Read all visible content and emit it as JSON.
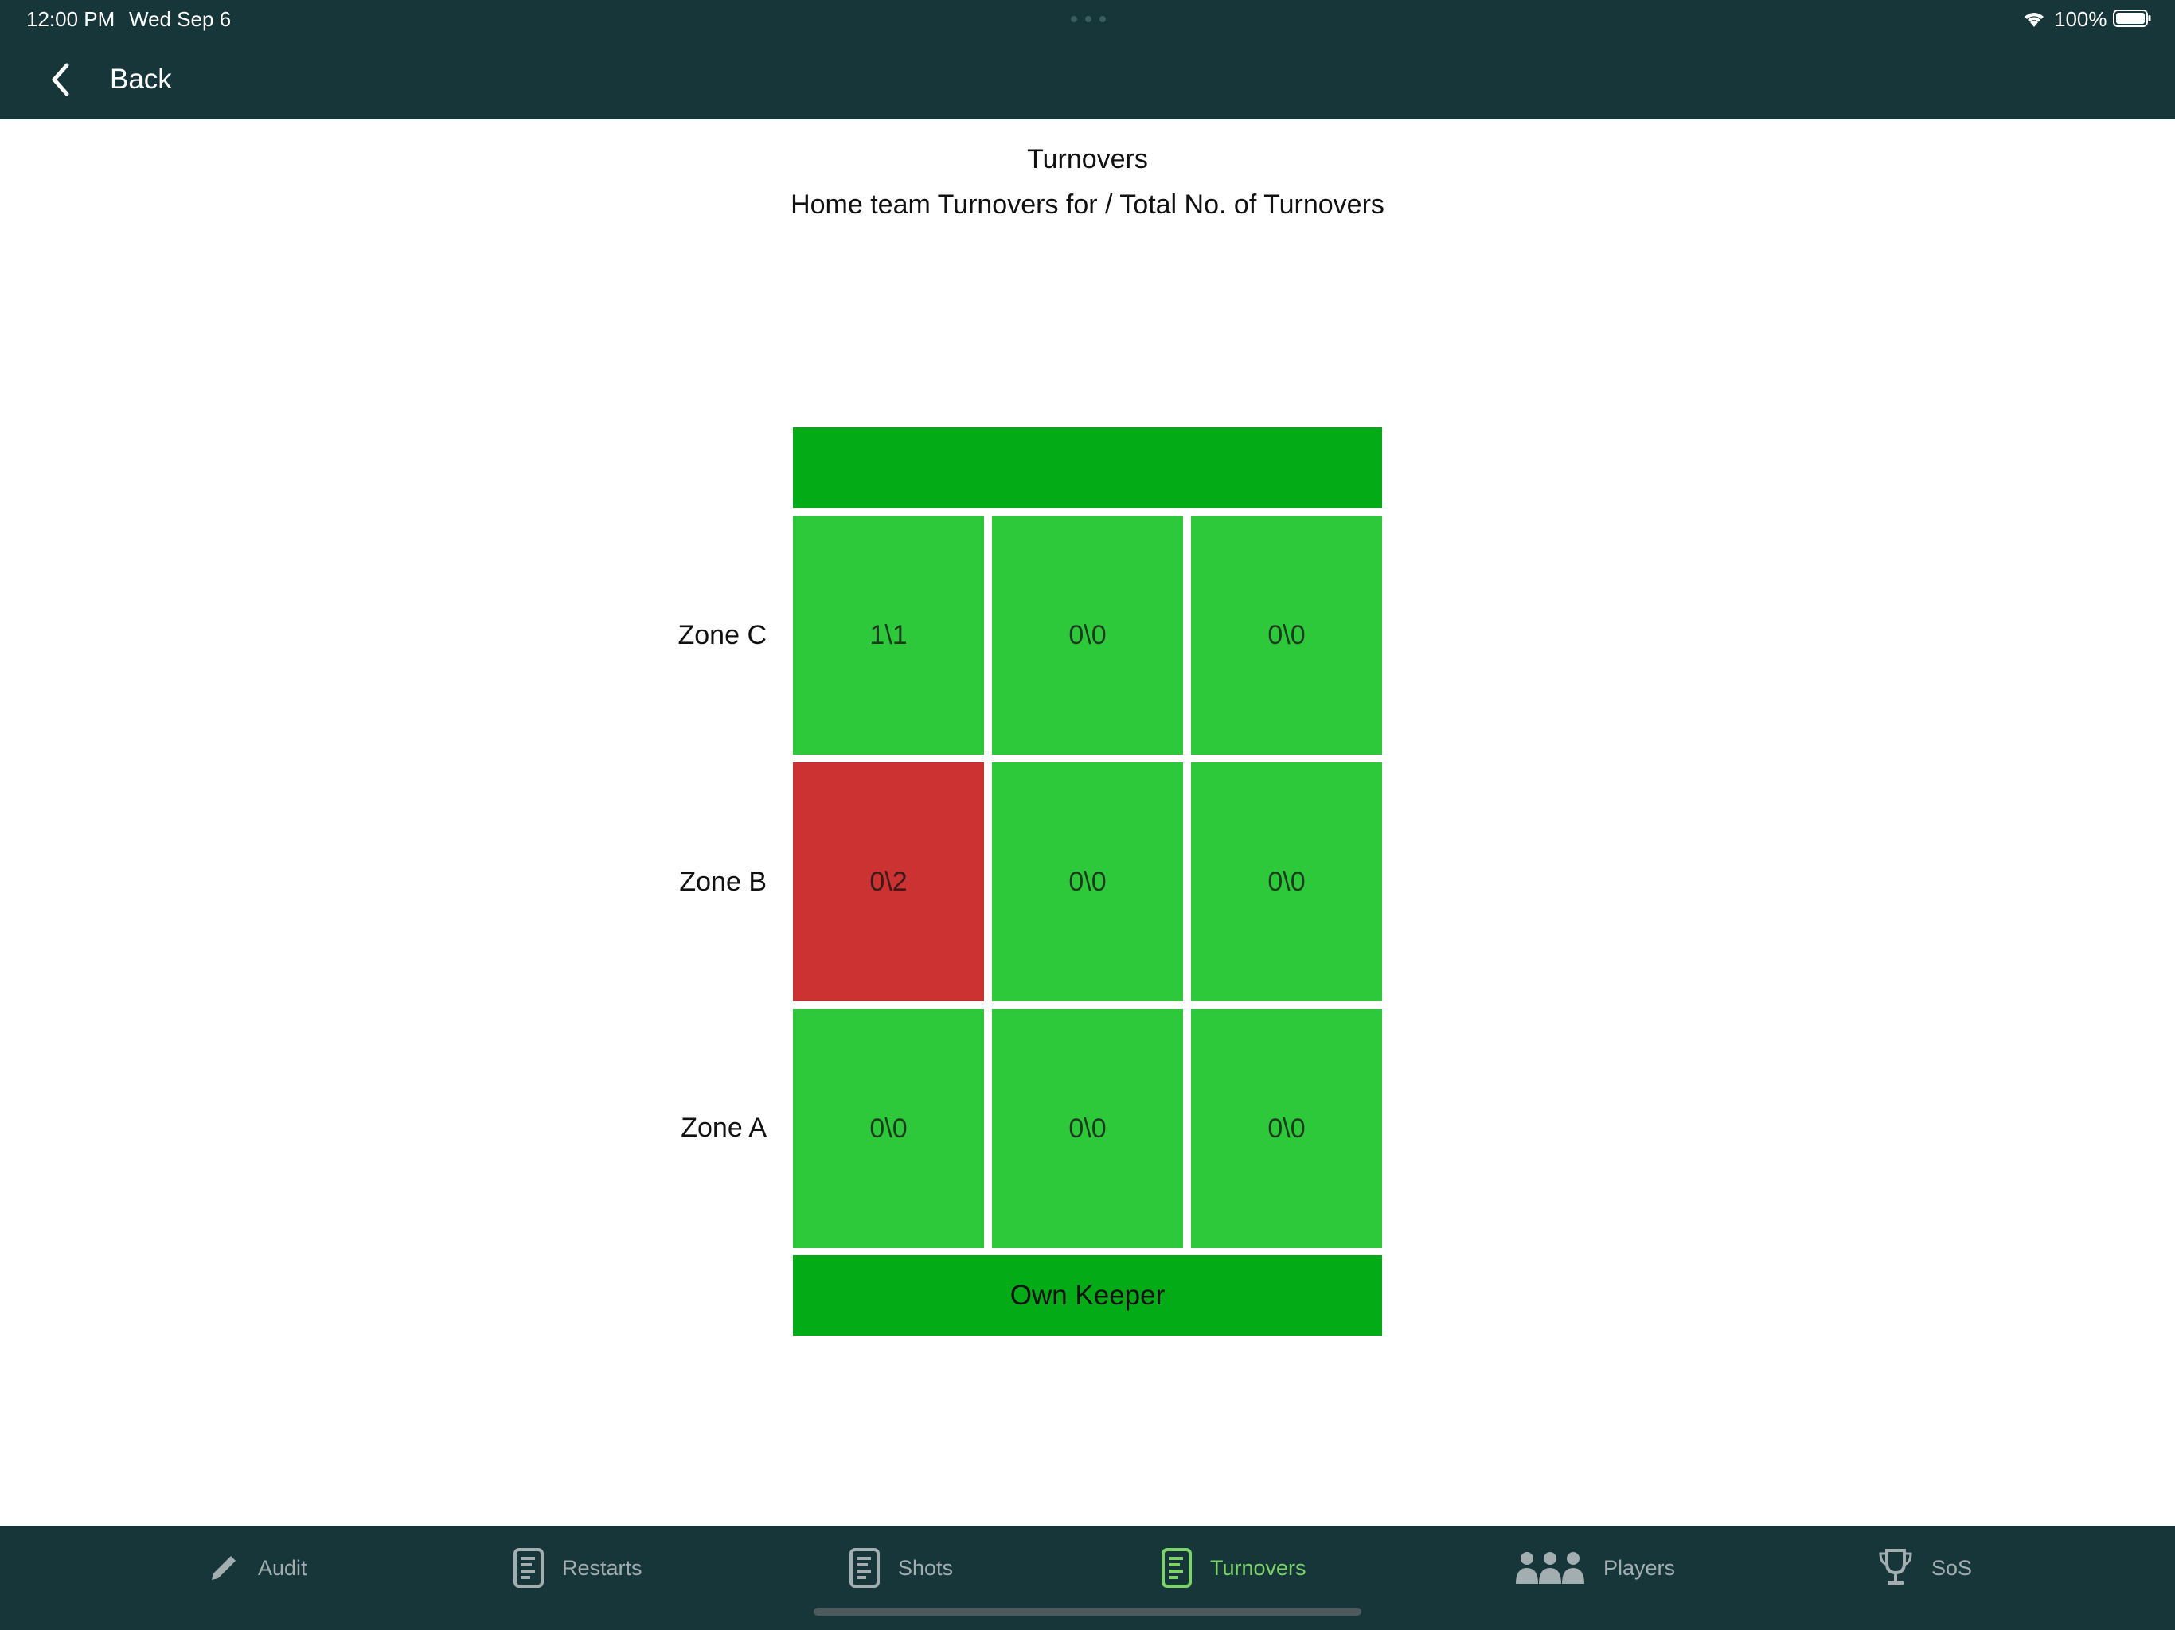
{
  "status_bar": {
    "time": "12:00 PM",
    "date": "Wed Sep 6",
    "battery": "100%"
  },
  "nav": {
    "back_label": "Back"
  },
  "header": {
    "title": "Turnovers",
    "subtitle": "Home team Turnovers for / Total No. of Turnovers"
  },
  "pitch": {
    "keeper_label": "Own Keeper",
    "zones": [
      {
        "label": "Zone C",
        "cells": [
          "1\\1",
          "0\\0",
          "0\\0"
        ],
        "highlight": [
          false,
          false,
          false
        ]
      },
      {
        "label": "Zone B",
        "cells": [
          "0\\2",
          "0\\0",
          "0\\0"
        ],
        "highlight": [
          true,
          false,
          false
        ]
      },
      {
        "label": "Zone A",
        "cells": [
          "0\\0",
          "0\\0",
          "0\\0"
        ],
        "highlight": [
          false,
          false,
          false
        ]
      }
    ]
  },
  "colors": {
    "nav_bg": "#17363a",
    "cell_green": "#2ec83b",
    "bar_green": "#03ab17",
    "cell_red": "#cc3232",
    "tab_active": "#7dd36a"
  },
  "tabs": [
    {
      "label": "Audit",
      "icon": "pencil-icon",
      "active": false
    },
    {
      "label": "Restarts",
      "icon": "document-icon",
      "active": false
    },
    {
      "label": "Shots",
      "icon": "document-icon",
      "active": false
    },
    {
      "label": "Turnovers",
      "icon": "document-icon",
      "active": true
    },
    {
      "label": "Players",
      "icon": "people-icon",
      "active": false
    },
    {
      "label": "SoS",
      "icon": "trophy-icon",
      "active": false
    }
  ]
}
